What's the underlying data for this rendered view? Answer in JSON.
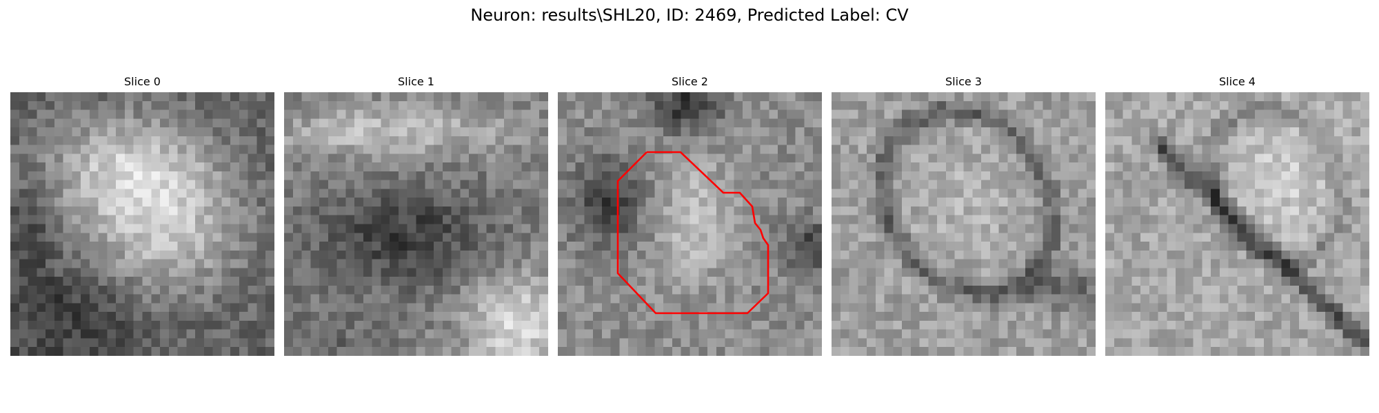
{
  "figure": {
    "title": "Neuron: results\\SHL20, ID: 2469, Predicted Label: CV"
  },
  "slices": [
    {
      "title": "Slice 0"
    },
    {
      "title": "Slice 1"
    },
    {
      "title": "Slice 2",
      "has_outline": true
    },
    {
      "title": "Slice 3"
    },
    {
      "title": "Slice 4"
    }
  ],
  "colors": {
    "background": "#ffffff",
    "outline": "#ff0000",
    "colormap": "grayscale"
  }
}
